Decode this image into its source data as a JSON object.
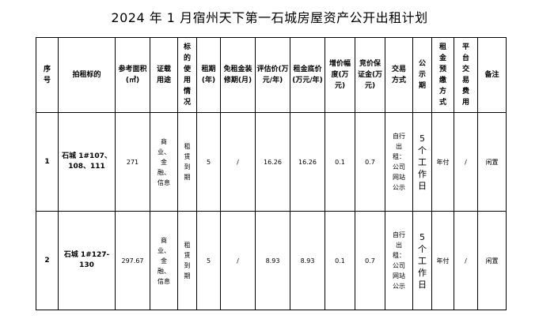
{
  "title": "2024 年 1 月宿州天下第一石城房屋资产公开出租计划",
  "headers": {
    "seq": "序号",
    "target": "拍租标的",
    "area": "参考面积(㎡)",
    "cert_use": "证载用途",
    "use": "标的使用情况",
    "term": "租期(年)",
    "free_rent": "免租金装修期(月)",
    "valuation": "评估价(万元/年)",
    "reserve": "租金底价(万元/年)",
    "increment": "增价幅度(万元)",
    "deposit": "竞价保证金(万元)",
    "trade_method": "交易方式",
    "notice_period": "公示期",
    "prepay": "租金预缴方式",
    "platform_fee": "平台交易费用",
    "remark": "备注"
  },
  "rows": [
    {
      "seq": "1",
      "target": "石城 1#107、108、111",
      "area": "271",
      "cert_use": "商业、金融、信息",
      "use": "租赁到期",
      "term": "5",
      "free_rent": "/",
      "valuation": "16.26",
      "reserve": "16.26",
      "increment": "0.1",
      "deposit": "0.7",
      "trade_method": "自行出租：公司网站公示",
      "notice_period": "5个工作日",
      "prepay": "年付",
      "platform_fee": "/",
      "remark": "闲置"
    },
    {
      "seq": "2",
      "target": "石城 1#127-130",
      "area": "297.67",
      "cert_use": "商业、金融、信息",
      "use": "租赁到期",
      "term": "5",
      "free_rent": "/",
      "valuation": "8.93",
      "reserve": "8.93",
      "increment": "0.1",
      "deposit": "0.7",
      "trade_method": "自行出租：公司网站公示",
      "notice_period": "5个工作日",
      "prepay": "年付",
      "platform_fee": "/",
      "remark": "闲置"
    }
  ]
}
